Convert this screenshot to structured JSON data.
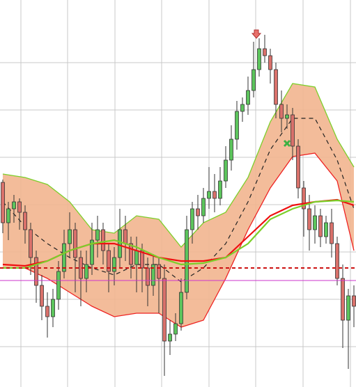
{
  "chart_data": {
    "type": "candlestick",
    "up_color": "#5cc45c",
    "down_color": "#d9716b",
    "edge_color": "#333333",
    "xlim": [
      -0.5,
      63.375
    ],
    "xticks": [
      3.25,
      11.625,
      20.125,
      28.5,
      37,
      45.375,
      53.875,
      62.375
    ],
    "ylim": [
      0,
      556
    ],
    "yticks": [
      58,
      126,
      194,
      262,
      330,
      398,
      466
    ],
    "grid": true,
    "ohlc": [
      [
        294,
        298,
        221,
        236
      ],
      [
        236,
        266,
        211,
        256
      ],
      [
        256,
        276,
        236,
        266
      ],
      [
        266,
        271,
        226,
        251
      ],
      [
        251,
        261,
        206,
        226
      ],
      [
        226,
        236,
        161,
        186
      ],
      [
        186,
        196,
        121,
        146
      ],
      [
        146,
        161,
        96,
        116
      ],
      [
        116,
        136,
        71,
        101
      ],
      [
        101,
        141,
        86,
        126
      ],
      [
        126,
        181,
        111,
        166
      ],
      [
        166,
        226,
        156,
        206
      ],
      [
        206,
        251,
        186,
        226
      ],
      [
        226,
        236,
        136,
        186
      ],
      [
        186,
        196,
        116,
        156
      ],
      [
        156,
        196,
        136,
        176
      ],
      [
        176,
        236,
        161,
        211
      ],
      [
        211,
        246,
        186,
        226
      ],
      [
        226,
        236,
        176,
        196
      ],
      [
        196,
        206,
        136,
        166
      ],
      [
        166,
        201,
        146,
        186
      ],
      [
        186,
        256,
        171,
        226
      ],
      [
        226,
        246,
        181,
        206
      ],
      [
        206,
        216,
        156,
        176
      ],
      [
        176,
        216,
        136,
        196
      ],
      [
        196,
        206,
        136,
        171
      ],
      [
        171,
        186,
        116,
        146
      ],
      [
        146,
        191,
        131,
        176
      ],
      [
        176,
        186,
        106,
        156
      ],
      [
        156,
        176,
        16,
        66
      ],
      [
        66,
        96,
        46,
        76
      ],
      [
        76,
        106,
        66,
        91
      ],
      [
        91,
        156,
        81,
        136
      ],
      [
        136,
        246,
        126,
        226
      ],
      [
        226,
        266,
        206,
        256
      ],
      [
        256,
        276,
        226,
        246
      ],
      [
        246,
        286,
        236,
        271
      ],
      [
        271,
        316,
        256,
        281
      ],
      [
        281,
        306,
        251,
        271
      ],
      [
        271,
        316,
        261,
        296
      ],
      [
        296,
        346,
        286,
        326
      ],
      [
        326,
        376,
        311,
        356
      ],
      [
        356,
        411,
        341,
        396
      ],
      [
        396,
        416,
        381,
        406
      ],
      [
        406,
        446,
        391,
        426
      ],
      [
        426,
        496,
        416,
        456
      ],
      [
        456,
        501,
        446,
        486
      ],
      [
        486,
        506,
        466,
        476
      ],
      [
        476,
        486,
        436,
        456
      ],
      [
        456,
        466,
        386,
        406
      ],
      [
        406,
        426,
        366,
        386
      ],
      [
        386,
        406,
        371,
        391
      ],
      [
        391,
        401,
        326,
        346
      ],
      [
        346,
        356,
        271,
        286
      ],
      [
        286,
        296,
        216,
        256
      ],
      [
        256,
        276,
        196,
        226
      ],
      [
        226,
        261,
        206,
        246
      ],
      [
        246,
        256,
        201,
        216
      ],
      [
        216,
        246,
        206,
        236
      ],
      [
        236,
        256,
        186,
        206
      ],
      [
        206,
        216,
        146,
        156
      ],
      [
        156,
        176,
        56,
        96
      ],
      [
        96,
        141,
        26,
        131
      ],
      [
        131,
        146,
        86,
        116
      ]
    ],
    "band": {
      "fill": "#f2b58f",
      "x": [
        0,
        4,
        8,
        12,
        16,
        20,
        24,
        28,
        32,
        36,
        40,
        44,
        48,
        52,
        56,
        60,
        63
      ],
      "upper": {
        "color": "#7ccf2a",
        "values": [
          306,
          301,
          291,
          266,
          226,
          221,
          246,
          241,
          201,
          236,
          251,
          301,
          381,
          436,
          431,
          356,
          316
        ]
      },
      "lower": {
        "color": "#ee2222",
        "values": [
          171,
          171,
          156,
          136,
          116,
          101,
          106,
          106,
          86,
          96,
          156,
          226,
          286,
          331,
          336,
          296,
          196
        ]
      },
      "middle": {
        "color": "#222222",
        "values": [
          266,
          231,
          206,
          186,
          171,
          161,
          176,
          176,
          151,
          171,
          206,
          266,
          341,
          386,
          386,
          326,
          256
        ]
      }
    },
    "lines": [
      {
        "color": "#ee1111",
        "x": [
          0,
          4,
          8,
          12,
          16,
          20,
          24,
          28,
          32,
          36,
          40,
          44,
          48,
          52,
          56,
          60,
          63
        ],
        "values": [
          176,
          174,
          181,
          196,
          206,
          206,
          196,
          186,
          181,
          181,
          186,
          216,
          246,
          261,
          266,
          269,
          261
        ]
      },
      {
        "color": "#7ccf2a",
        "x": [
          0,
          4,
          8,
          12,
          16,
          20,
          24,
          28,
          32,
          36,
          40,
          44,
          48,
          52,
          56,
          60,
          63
        ],
        "values": [
          171,
          171,
          181,
          196,
          206,
          211,
          201,
          186,
          176,
          178,
          186,
          206,
          241,
          256,
          266,
          268,
          266
        ]
      }
    ],
    "hlines": [
      {
        "color": "#cc1111",
        "value": 171,
        "dash": true
      },
      {
        "color": "#cc33cc",
        "value": 153,
        "dash": false
      }
    ]
  }
}
